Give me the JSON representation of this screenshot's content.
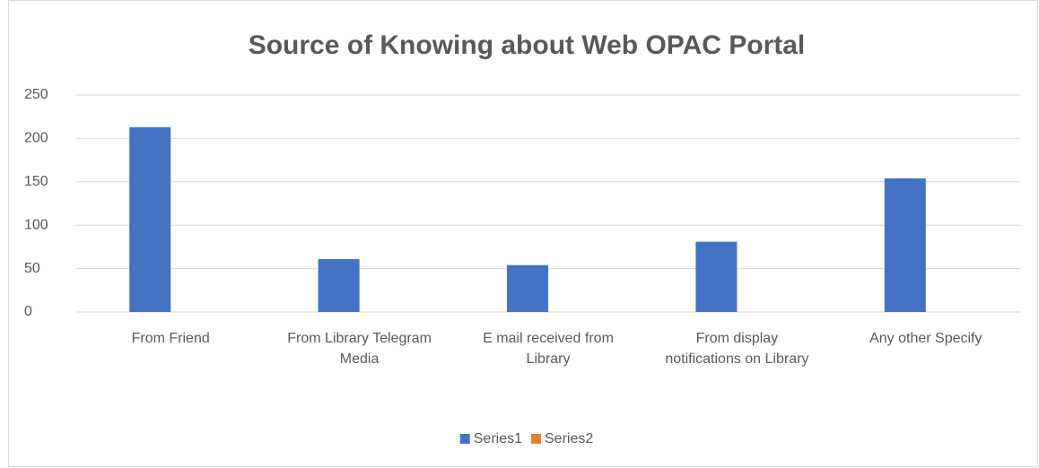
{
  "chart_data": {
    "type": "bar",
    "title": "Source of Knowing about Web OPAC Portal",
    "categories": [
      "From Friend",
      "From Library Telegram Media",
      "E mail received from Library",
      "From display notifications on Library",
      "Any other Specify"
    ],
    "series": [
      {
        "name": "Series1",
        "color": "#4472c4",
        "values": [
          213,
          61,
          54,
          81,
          154
        ]
      },
      {
        "name": "Series2",
        "color": "#ed7d31",
        "values": [
          null,
          null,
          null,
          null,
          null
        ]
      }
    ],
    "ylim": [
      0,
      250
    ],
    "yticks": [
      0,
      50,
      100,
      150,
      200,
      250
    ],
    "grid": true,
    "legend": "bottom"
  }
}
